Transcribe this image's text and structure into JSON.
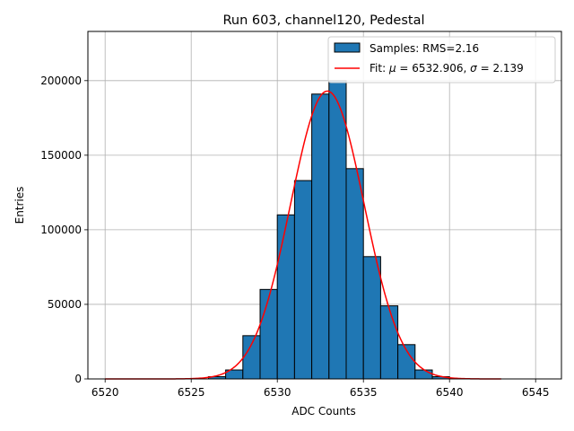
{
  "chart_data": {
    "type": "bar",
    "title": "Run 603, channel120, Pedestal",
    "xlabel": "ADC Counts",
    "ylabel": "Entries",
    "xlim": [
      6519,
      6546.5
    ],
    "ylim": [
      0,
      233000
    ],
    "xticks": [
      6520,
      6525,
      6530,
      6535,
      6540,
      6545
    ],
    "xtick_labels": [
      "6520",
      "6525",
      "6530",
      "6535",
      "6540",
      "6545"
    ],
    "yticks": [
      0,
      50000,
      100000,
      150000,
      200000
    ],
    "ytick_labels": [
      "0",
      "50000",
      "100000",
      "150000",
      "200000"
    ],
    "grid": true,
    "legend_position": "top-right",
    "histogram": {
      "name": "Samples: RMS=2.16",
      "color": "#1f77b4",
      "edge_color": "#000000",
      "bin_width": 1,
      "bins": [
        {
          "x0": 6526,
          "value": 1500
        },
        {
          "x0": 6527,
          "value": 6000
        },
        {
          "x0": 6528,
          "value": 29000
        },
        {
          "x0": 6529,
          "value": 60000
        },
        {
          "x0": 6530,
          "value": 110000
        },
        {
          "x0": 6531,
          "value": 133000
        },
        {
          "x0": 6532,
          "value": 191000
        },
        {
          "x0": 6533,
          "value": 200000
        },
        {
          "x0": 6534,
          "value": 141000
        },
        {
          "x0": 6535,
          "value": 82000
        },
        {
          "x0": 6536,
          "value": 49000
        },
        {
          "x0": 6537,
          "value": 23000
        },
        {
          "x0": 6538,
          "value": 6000
        },
        {
          "x0": 6539,
          "value": 1500
        }
      ]
    },
    "fit": {
      "name": "Fit: μ = 6532.906, σ = 2.139",
      "label_prefix": "Fit: ",
      "mu_symbol": "μ",
      "mu_text": " = 6532.906, ",
      "sigma_symbol": "σ",
      "sigma_text": " = 2.139",
      "color": "#ff0000",
      "mu": 6532.906,
      "sigma": 2.139,
      "amplitude": 193000,
      "x_range": [
        6520,
        6543
      ]
    }
  }
}
